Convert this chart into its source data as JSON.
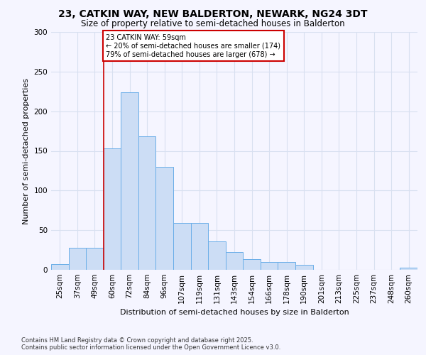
{
  "title": "23, CATKIN WAY, NEW BALDERTON, NEWARK, NG24 3DT",
  "subtitle": "Size of property relative to semi-detached houses in Balderton",
  "xlabel": "Distribution of semi-detached houses by size in Balderton",
  "ylabel": "Number of semi-detached properties",
  "categories": [
    "25sqm",
    "37sqm",
    "49sqm",
    "60sqm",
    "72sqm",
    "84sqm",
    "96sqm",
    "107sqm",
    "119sqm",
    "131sqm",
    "143sqm",
    "154sqm",
    "166sqm",
    "178sqm",
    "190sqm",
    "201sqm",
    "213sqm",
    "225sqm",
    "237sqm",
    "248sqm",
    "260sqm"
  ],
  "values": [
    7,
    28,
    28,
    153,
    224,
    168,
    130,
    59,
    59,
    36,
    22,
    13,
    10,
    10,
    6,
    0,
    0,
    0,
    0,
    0,
    3
  ],
  "bar_color": "#ccddf5",
  "bar_edge_color": "#6aaee8",
  "property_line_bin": 3,
  "annotation_text": "23 CATKIN WAY: 59sqm\n← 20% of semi-detached houses are smaller (174)\n79% of semi-detached houses are larger (678) →",
  "annotation_box_color": "#ffffff",
  "annotation_box_edge_color": "#cc0000",
  "property_line_color": "#cc0000",
  "footer_line1": "Contains HM Land Registry data © Crown copyright and database right 2025.",
  "footer_line2": "Contains public sector information licensed under the Open Government Licence v3.0.",
  "ylim": [
    0,
    300
  ],
  "yticks": [
    0,
    50,
    100,
    150,
    200,
    250,
    300
  ],
  "background_color": "#f5f5ff",
  "grid_color": "#d8e0f0",
  "title_fontsize": 10,
  "subtitle_fontsize": 8.5,
  "xlabel_fontsize": 8,
  "ylabel_fontsize": 8,
  "tick_fontsize": 7.5,
  "annotation_fontsize": 7,
  "footer_fontsize": 6
}
